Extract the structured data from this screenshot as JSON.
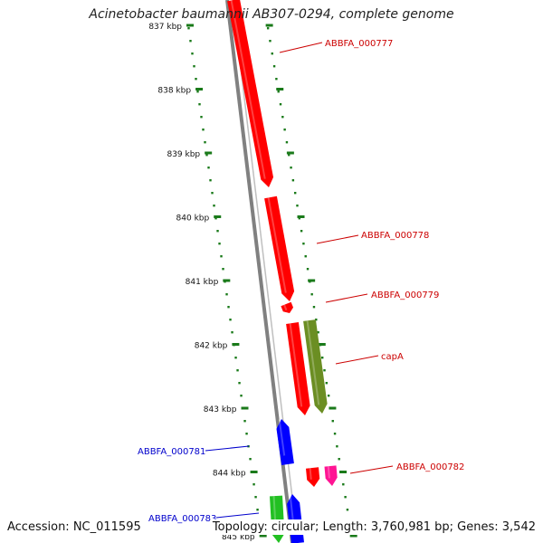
{
  "title": "Acinetobacter baumannii AB307-0294, complete genome",
  "footer": {
    "accession": "Accession: NC_011595",
    "topology": "Topology: circular; Length: 3,760,981 bp; Genes: 3,542"
  },
  "colors": {
    "backbone": "#808080",
    "tick": "#1a7a1a",
    "tick_label": "#111111",
    "forward_gene": "#ff0000",
    "reverse_gene": "#0000ff",
    "capA": "#6b8e23",
    "gene_782_partner": "#ff1493",
    "gene_783_partner": "#22c022",
    "label_forward": "#cc0000",
    "label_reverse": "#0000cc"
  },
  "ticks": [
    {
      "label": "837 kbp",
      "kbp": 837
    },
    {
      "label": "838 kbp",
      "kbp": 838
    },
    {
      "label": "839 kbp",
      "kbp": 839
    },
    {
      "label": "840 kbp",
      "kbp": 840
    },
    {
      "label": "841 kbp",
      "kbp": 841
    },
    {
      "label": "842 kbp",
      "kbp": 842
    },
    {
      "label": "843 kbp",
      "kbp": 843
    },
    {
      "label": "844 kbp",
      "kbp": 844
    },
    {
      "label": "845 kbp",
      "kbp": 845
    }
  ],
  "gene_labels": [
    {
      "id": "g777",
      "text": "ABBFA_000777",
      "side": "right"
    },
    {
      "id": "g778",
      "text": "ABBFA_000778",
      "side": "right"
    },
    {
      "id": "g779",
      "text": "ABBFA_000779",
      "side": "right"
    },
    {
      "id": "capA",
      "text": "capA",
      "side": "right"
    },
    {
      "id": "g781",
      "text": "ABBFA_000781",
      "side": "left"
    },
    {
      "id": "g782",
      "text": "ABBFA_000782",
      "side": "right"
    },
    {
      "id": "g783",
      "text": "ABBFA_000783",
      "side": "left"
    }
  ]
}
